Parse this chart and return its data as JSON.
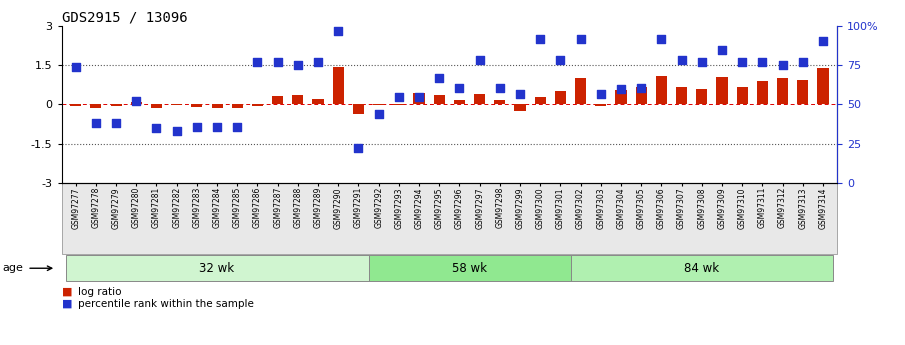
{
  "title": "GDS2915 / 13096",
  "samples": [
    "GSM97277",
    "GSM97278",
    "GSM97279",
    "GSM97280",
    "GSM97281",
    "GSM97282",
    "GSM97283",
    "GSM97284",
    "GSM97285",
    "GSM97286",
    "GSM97287",
    "GSM97288",
    "GSM97289",
    "GSM97290",
    "GSM97291",
    "GSM97292",
    "GSM97293",
    "GSM97294",
    "GSM97295",
    "GSM97296",
    "GSM97297",
    "GSM97298",
    "GSM97299",
    "GSM97300",
    "GSM97301",
    "GSM97302",
    "GSM97303",
    "GSM97304",
    "GSM97305",
    "GSM97306",
    "GSM97307",
    "GSM97308",
    "GSM97309",
    "GSM97310",
    "GSM97311",
    "GSM97312",
    "GSM97313",
    "GSM97314"
  ],
  "log_ratio": [
    -0.05,
    -0.12,
    -0.08,
    0.08,
    -0.12,
    -0.04,
    -0.1,
    -0.14,
    -0.12,
    -0.05,
    0.32,
    0.35,
    0.2,
    1.42,
    -0.35,
    -0.02,
    -0.02,
    0.45,
    0.35,
    0.18,
    0.38,
    0.15,
    -0.25,
    0.28,
    0.5,
    1.02,
    -0.05,
    0.55,
    0.65,
    1.08,
    0.65,
    0.6,
    1.05,
    0.68,
    0.9,
    1.0,
    0.95,
    1.38
  ],
  "percentile_left": [
    1.42,
    -0.7,
    -0.7,
    0.12,
    -0.9,
    -1.0,
    -0.85,
    -0.85,
    -0.85,
    1.62,
    1.62,
    1.5,
    1.62,
    2.8,
    -1.65,
    -0.38,
    0.28,
    0.28,
    1.0,
    0.62,
    1.68,
    0.62,
    0.38,
    2.5,
    1.68,
    2.5,
    0.4,
    0.6,
    0.62,
    2.5,
    1.7,
    1.62,
    2.08,
    1.62,
    1.62,
    1.5,
    1.62,
    2.42
  ],
  "groups": [
    {
      "label": "32 wk",
      "start": 0,
      "end": 14,
      "color": "#d0f5d0"
    },
    {
      "label": "58 wk",
      "start": 15,
      "end": 24,
      "color": "#90e890"
    },
    {
      "label": "84 wk",
      "start": 25,
      "end": 37,
      "color": "#b0f0b0"
    }
  ],
  "bar_color": "#cc2200",
  "dot_color": "#2233cc",
  "hline_color": "#dd0000",
  "ylim": [
    -3,
    3
  ],
  "dotted_yvals": [
    1.5,
    -1.5
  ],
  "legend_bar": "log ratio",
  "legend_dot": "percentile rank within the sample",
  "age_label": "age"
}
